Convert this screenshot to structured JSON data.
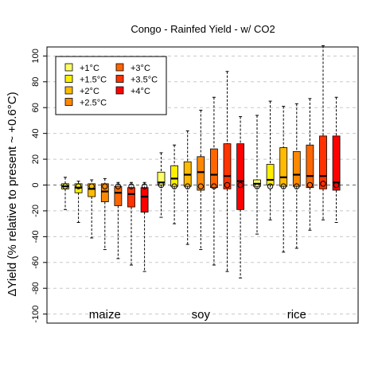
{
  "chart_data": {
    "type": "box",
    "title": "Congo - Rainfed Yield - w/ CO2",
    "ylabel": "ΔYield (% relative to present ~ +0.6°C)",
    "ylim": [
      -107,
      107
    ],
    "yticks": [
      -100,
      -80,
      -60,
      -40,
      -20,
      0,
      20,
      40,
      60,
      80,
      100
    ],
    "grid": "horizontal dashed",
    "legend_position": "top-left",
    "legend": [
      {
        "label": "+1°C",
        "color": "#FFFF66"
      },
      {
        "label": "+1.5°C",
        "color": "#FFEE00"
      },
      {
        "label": "+2°C",
        "color": "#FFBB00"
      },
      {
        "label": "+2.5°C",
        "color": "#FF8800"
      },
      {
        "label": "+3°C",
        "color": "#FF6600"
      },
      {
        "label": "+3.5°C",
        "color": "#FF3300"
      },
      {
        "label": "+4°C",
        "color": "#FF0000"
      }
    ],
    "groups": [
      {
        "name": "maize",
        "boxes": [
          {
            "warming": "+1°C",
            "whisker_low": -19,
            "q1": -3,
            "median": -1,
            "q3": 1,
            "whisker_high": 6,
            "mean": -1
          },
          {
            "warming": "+1.5°C",
            "whisker_low": -29,
            "q1": -6,
            "median": -2,
            "q3": 1,
            "whisker_high": 3,
            "mean": -1
          },
          {
            "warming": "+2°C",
            "whisker_low": -41,
            "q1": -9,
            "median": -3,
            "q3": 1,
            "whisker_high": 4,
            "mean": -1
          },
          {
            "warming": "+2.5°C",
            "whisker_low": -50,
            "q1": -13,
            "median": -5,
            "q3": 1,
            "whisker_high": 5,
            "mean": -1
          },
          {
            "warming": "+3°C",
            "whisker_low": -57,
            "q1": -16,
            "median": -6,
            "q3": -1,
            "whisker_high": 2,
            "mean": -1
          },
          {
            "warming": "+3.5°C",
            "whisker_low": -62,
            "q1": -17,
            "median": -7,
            "q3": -2,
            "whisker_high": 2,
            "mean": -1
          },
          {
            "warming": "+4°C",
            "whisker_low": -67,
            "q1": -21,
            "median": -9,
            "q3": -2,
            "whisker_high": 2,
            "mean": -1
          }
        ]
      },
      {
        "name": "soy",
        "boxes": [
          {
            "warming": "+1°C",
            "whisker_low": -25,
            "q1": 0,
            "median": 2,
            "q3": 10,
            "whisker_high": 25,
            "mean": 0
          },
          {
            "warming": "+1.5°C",
            "whisker_low": -30,
            "q1": -1,
            "median": 5,
            "q3": 15,
            "whisker_high": 31,
            "mean": -1
          },
          {
            "warming": "+2°C",
            "whisker_low": -46,
            "q1": -1,
            "median": 8,
            "q3": 18,
            "whisker_high": 42,
            "mean": -1
          },
          {
            "warming": "+2.5°C",
            "whisker_low": -50,
            "q1": -4,
            "median": 10,
            "q3": 22,
            "whisker_high": 58,
            "mean": -1
          },
          {
            "warming": "+3°C",
            "whisker_low": -62,
            "q1": -2,
            "median": 8,
            "q3": 28,
            "whisker_high": 68,
            "mean": -1
          },
          {
            "warming": "+3.5°C",
            "whisker_low": -67,
            "q1": -3,
            "median": 7,
            "q3": 32,
            "whisker_high": 88,
            "mean": 0
          },
          {
            "warming": "+4°C",
            "whisker_low": -72,
            "q1": -19,
            "median": 3,
            "q3": 32,
            "whisker_high": 53,
            "mean": 0
          }
        ]
      },
      {
        "name": "rice",
        "boxes": [
          {
            "warming": "+1°C",
            "whisker_low": -38,
            "q1": -1,
            "median": 1,
            "q3": 4,
            "whisker_high": 54,
            "mean": -1
          },
          {
            "warming": "+1.5°C",
            "whisker_low": -27,
            "q1": 0,
            "median": 4,
            "q3": 16,
            "whisker_high": 65,
            "mean": -1
          },
          {
            "warming": "+2°C",
            "whisker_low": -52,
            "q1": -1,
            "median": 6,
            "q3": 29,
            "whisker_high": 61,
            "mean": -1
          },
          {
            "warming": "+2.5°C",
            "whisker_low": -49,
            "q1": -1,
            "median": 8,
            "q3": 26,
            "whisker_high": 63,
            "mean": -1
          },
          {
            "warming": "+3°C",
            "whisker_low": -35,
            "q1": -2,
            "median": 7,
            "q3": 31,
            "whisker_high": 67,
            "mean": 0
          },
          {
            "warming": "+3.5°C",
            "whisker_low": -27,
            "q1": -3,
            "median": 7,
            "q3": 38,
            "whisker_high": 108,
            "mean": 1
          },
          {
            "warming": "+4°C",
            "whisker_low": -29,
            "q1": -4,
            "median": 2,
            "q3": 38,
            "whisker_high": 68,
            "mean": 0
          }
        ]
      }
    ]
  }
}
